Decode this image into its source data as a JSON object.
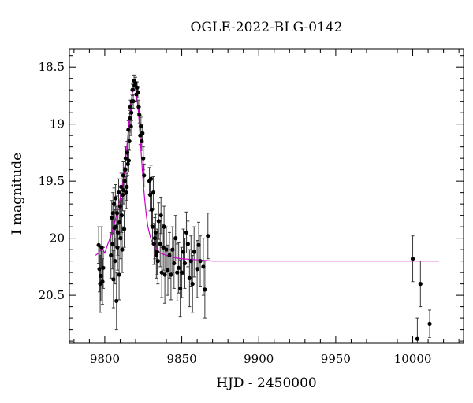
{
  "chart_data": {
    "type": "scatter",
    "title": "OGLE-2022-BLG-0142",
    "xlabel": "HJD - 2450000",
    "ylabel": "I magnitude",
    "xlim": [
      9777,
      10033
    ],
    "ylim": [
      20.92,
      18.34
    ],
    "y_inverted": true,
    "xticks": [
      9800,
      9850,
      9900,
      9950,
      10000
    ],
    "xtick_labels": [
      "9800",
      "9850",
      "9900",
      "9950",
      "10000"
    ],
    "yticks": [
      18.5,
      19,
      19.5,
      20,
      20.5
    ],
    "ytick_labels": [
      "18.5",
      "19",
      "19.5",
      "20",
      "20.5"
    ],
    "grid": false,
    "colors": {
      "data": "#000000",
      "errorbar": "#3a3a3a",
      "model": "#cc00cc"
    },
    "series": [
      {
        "kind": "points_with_errors",
        "points": [
          [
            9796.0,
            20.06,
            0.16
          ],
          [
            9796.5,
            20.27,
            0.2
          ],
          [
            9797.0,
            20.4,
            0.25
          ],
          [
            9797.5,
            20.33,
            0.22
          ],
          [
            9798.0,
            20.08,
            0.18
          ],
          [
            9798.5,
            20.38,
            0.2
          ],
          [
            9799.0,
            20.26,
            0.18
          ],
          [
            9804.0,
            20.15,
            0.2
          ],
          [
            9804.5,
            19.82,
            0.15
          ],
          [
            9805.0,
            20.05,
            0.22
          ],
          [
            9805.3,
            19.78,
            0.18
          ],
          [
            9805.6,
            20.36,
            0.25
          ],
          [
            9806.0,
            19.7,
            0.14
          ],
          [
            9806.3,
            19.91,
            0.16
          ],
          [
            9806.6,
            20.2,
            0.2
          ],
          [
            9807.0,
            19.65,
            0.12
          ],
          [
            9807.3,
            19.9,
            0.18
          ],
          [
            9807.6,
            20.55,
            0.25
          ],
          [
            9808.0,
            19.78,
            0.15
          ],
          [
            9808.3,
            20.08,
            0.2
          ],
          [
            9808.6,
            19.95,
            0.2
          ],
          [
            9809.0,
            19.6,
            0.12
          ],
          [
            9809.3,
            20.32,
            0.22
          ],
          [
            9809.6,
            19.86,
            0.15
          ],
          [
            9810.0,
            19.72,
            0.14
          ],
          [
            9810.3,
            20.0,
            0.18
          ],
          [
            9810.6,
            19.55,
            0.12
          ],
          [
            9811.0,
            19.8,
            0.15
          ],
          [
            9811.3,
            20.1,
            0.2
          ],
          [
            9811.6,
            19.62,
            0.14
          ],
          [
            9812.0,
            19.45,
            0.12
          ],
          [
            9812.3,
            19.58,
            0.12
          ],
          [
            9812.6,
            19.92,
            0.16
          ],
          [
            9813.0,
            19.5,
            0.12
          ],
          [
            9813.3,
            19.4,
            0.1
          ],
          [
            9813.6,
            19.3,
            0.1
          ],
          [
            9814.0,
            19.6,
            0.14
          ],
          [
            9814.3,
            19.55,
            0.12
          ],
          [
            9814.6,
            19.25,
            0.1
          ],
          [
            9815.0,
            19.35,
            0.1
          ],
          [
            9815.3,
            19.05,
            0.08
          ],
          [
            9815.6,
            19.32,
            0.1
          ],
          [
            9816.0,
            19.15,
            0.08
          ],
          [
            9816.3,
            18.95,
            0.07
          ],
          [
            9816.6,
            18.85,
            0.06
          ],
          [
            9817.0,
            19.02,
            0.08
          ],
          [
            9817.3,
            18.9,
            0.07
          ],
          [
            9817.6,
            18.8,
            0.06
          ],
          [
            9818.0,
            18.7,
            0.05
          ],
          [
            9818.5,
            18.8,
            0.06
          ],
          [
            9819.0,
            18.62,
            0.05
          ],
          [
            9819.5,
            18.66,
            0.05
          ],
          [
            9820.0,
            18.64,
            0.05
          ],
          [
            9820.5,
            18.74,
            0.06
          ],
          [
            9821.0,
            18.68,
            0.05
          ],
          [
            9821.5,
            18.72,
            0.05
          ],
          [
            9822.0,
            18.85,
            0.06
          ],
          [
            9822.5,
            18.92,
            0.07
          ],
          [
            9823.0,
            19.1,
            0.08
          ],
          [
            9823.5,
            19.02,
            0.08
          ],
          [
            9824.0,
            19.15,
            0.08
          ],
          [
            9824.5,
            19.08,
            0.08
          ],
          [
            9825.0,
            19.3,
            0.1
          ],
          [
            9825.5,
            19.45,
            0.1
          ],
          [
            9829.0,
            19.5,
            0.12
          ],
          [
            9829.5,
            19.62,
            0.14
          ],
          [
            9830.0,
            19.48,
            0.12
          ],
          [
            9830.5,
            19.75,
            0.14
          ],
          [
            9831.0,
            19.9,
            0.15
          ],
          [
            9831.5,
            19.6,
            0.14
          ],
          [
            9832.0,
            20.05,
            0.18
          ],
          [
            9832.5,
            20.0,
            0.18
          ],
          [
            9833.0,
            19.95,
            0.16
          ],
          [
            9833.5,
            20.15,
            0.2
          ],
          [
            9834.0,
            20.12,
            0.2
          ],
          [
            9834.5,
            20.2,
            0.2
          ],
          [
            9835.0,
            19.85,
            0.16
          ],
          [
            9836.0,
            20.05,
            0.2
          ],
          [
            9836.5,
            19.8,
            0.16
          ],
          [
            9837.0,
            20.3,
            0.22
          ],
          [
            9838.0,
            20.08,
            0.2
          ],
          [
            9838.5,
            19.9,
            0.18
          ],
          [
            9839.0,
            20.32,
            0.25
          ],
          [
            9840.0,
            20.1,
            0.2
          ],
          [
            9841.0,
            20.28,
            0.22
          ],
          [
            9842.0,
            20.15,
            0.2
          ],
          [
            9843.0,
            20.32,
            0.22
          ],
          [
            9844.0,
            20.1,
            0.2
          ],
          [
            9845.0,
            20.22,
            0.22
          ],
          [
            9846.0,
            20.0,
            0.2
          ],
          [
            9847.0,
            20.3,
            0.25
          ],
          [
            9848.0,
            20.26,
            0.22
          ],
          [
            9849.0,
            20.44,
            0.25
          ],
          [
            9850.0,
            20.3,
            0.22
          ],
          [
            9851.0,
            20.12,
            0.2
          ],
          [
            9852.0,
            20.22,
            0.22
          ],
          [
            9853.0,
            19.95,
            0.18
          ],
          [
            9854.0,
            20.05,
            0.2
          ],
          [
            9855.0,
            20.35,
            0.25
          ],
          [
            9856.0,
            20.2,
            0.22
          ],
          [
            9857.0,
            20.4,
            0.25
          ],
          [
            9858.0,
            20.12,
            0.22
          ],
          [
            9860.0,
            20.27,
            0.25
          ],
          [
            9861.0,
            20.06,
            0.2
          ],
          [
            9862.0,
            20.2,
            0.22
          ],
          [
            9864.0,
            20.25,
            0.25
          ],
          [
            9865.0,
            20.45,
            0.25
          ],
          [
            9867.0,
            19.98,
            0.2
          ],
          [
            10000.0,
            20.18,
            0.2
          ],
          [
            10005.0,
            20.4,
            0.2
          ],
          [
            10003.0,
            20.88,
            0.18
          ],
          [
            10011.0,
            20.75,
            0.12
          ]
        ]
      },
      {
        "kind": "model_curve",
        "x": [
          9794,
          9796,
          9798,
          9800,
          9802,
          9804,
          9806,
          9808,
          9810,
          9812,
          9813,
          9814,
          9815,
          9816,
          9817,
          9818,
          9819,
          9819.5,
          9820,
          9820.5,
          9821,
          9822,
          9823,
          9824,
          9825,
          9826,
          9827,
          9828,
          9830,
          9832,
          9834,
          9836,
          9840,
          9845,
          9850,
          9860,
          9870,
          9880,
          9900,
          9950,
          10000,
          10017
        ],
        "y": [
          20.15,
          20.13,
          20.08,
          20.13,
          20.05,
          19.98,
          19.88,
          19.78,
          19.65,
          19.5,
          19.38,
          19.25,
          19.1,
          18.95,
          18.82,
          18.72,
          18.67,
          18.665,
          18.67,
          18.71,
          18.78,
          18.92,
          19.12,
          19.33,
          19.52,
          19.67,
          19.8,
          19.9,
          20.01,
          20.07,
          20.1,
          20.13,
          20.15,
          20.17,
          20.18,
          20.19,
          20.2,
          20.2,
          20.2,
          20.2,
          20.2,
          20.2
        ]
      }
    ]
  }
}
